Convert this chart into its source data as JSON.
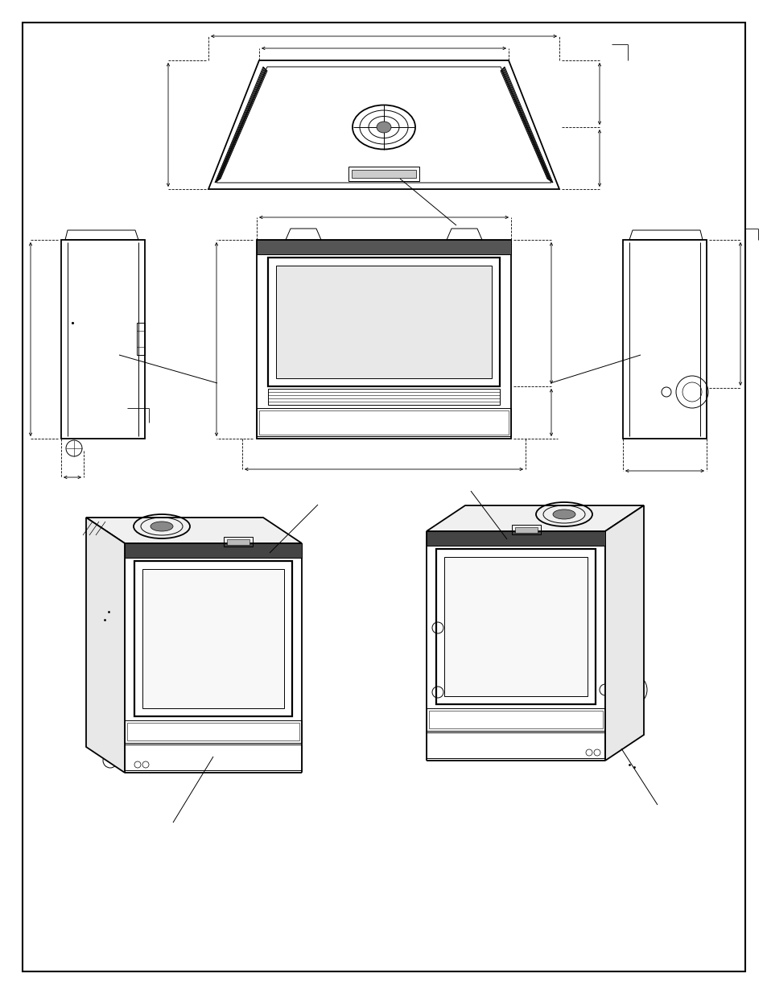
{
  "bg_color": "#ffffff",
  "line_color": "#000000",
  "lw_main": 1.3,
  "lw_thin": 0.7,
  "lw_dim": 0.6,
  "fig_width": 9.54,
  "fig_height": 12.35
}
